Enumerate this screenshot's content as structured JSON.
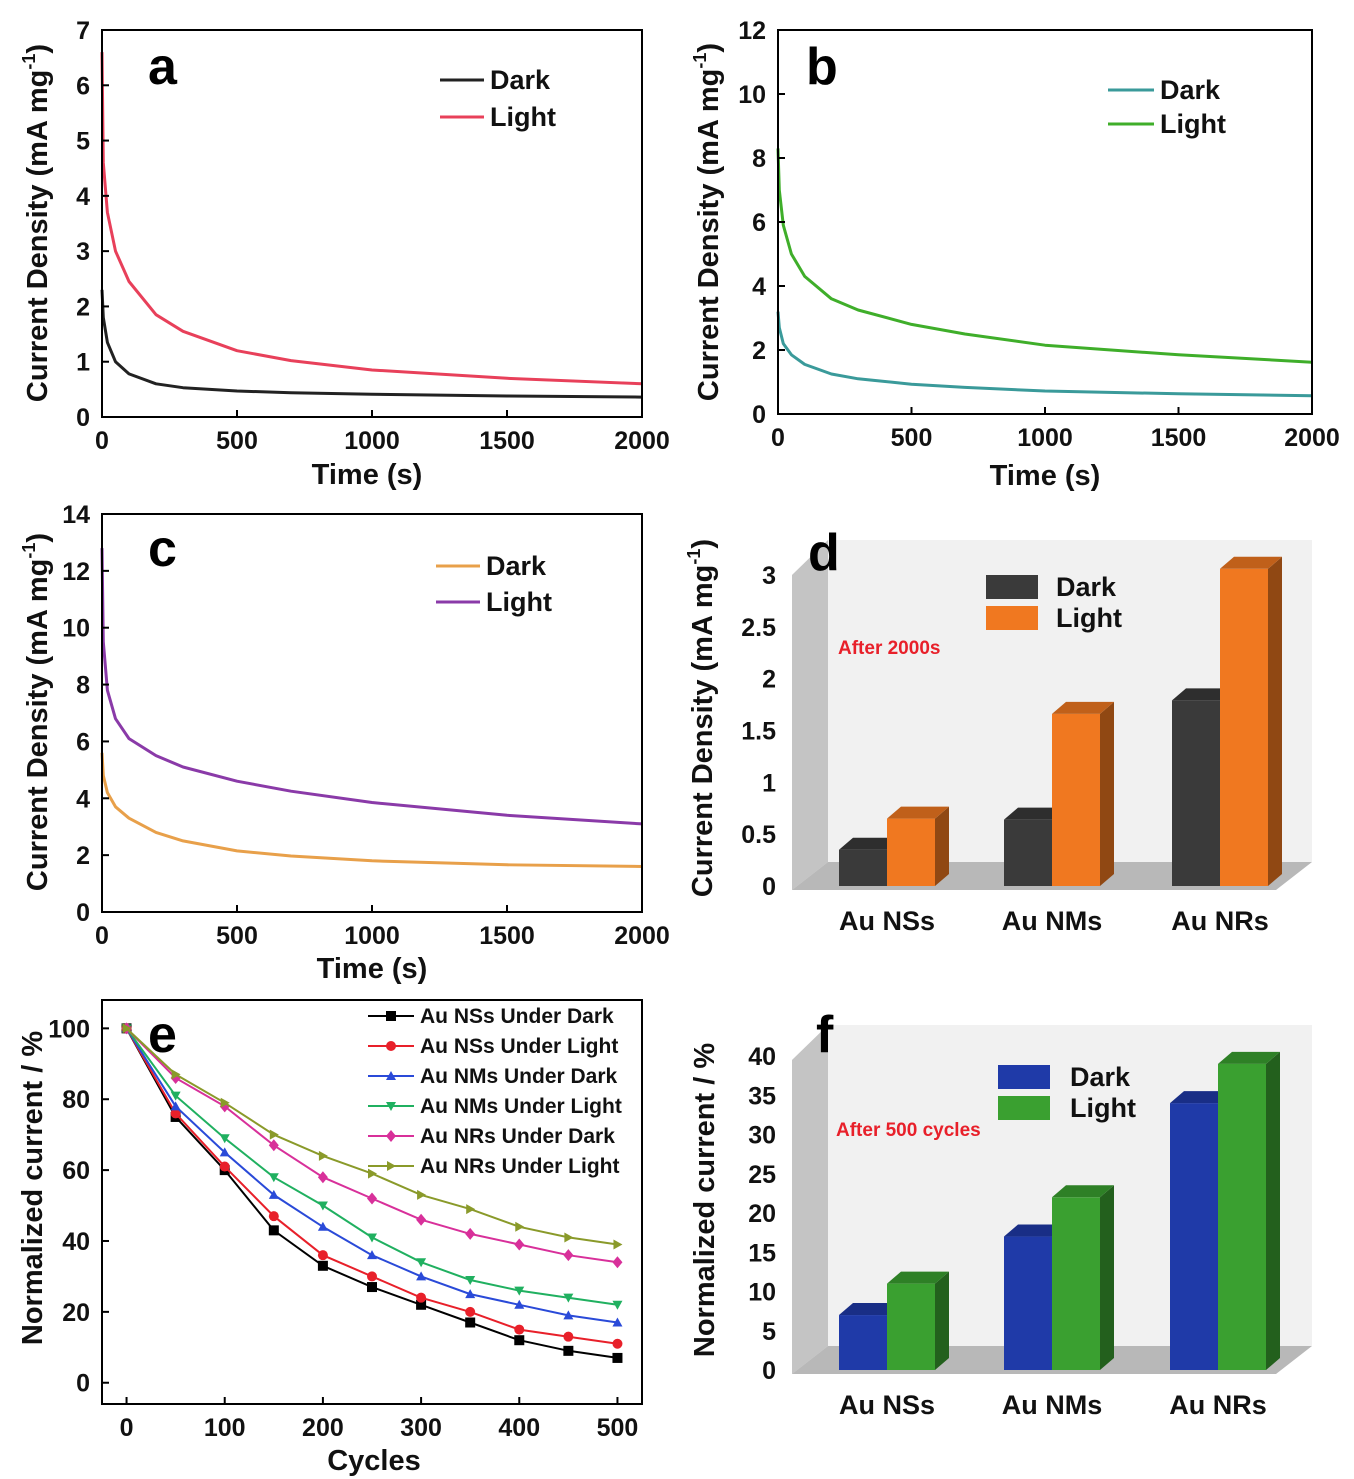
{
  "colors": {
    "dark_a": "#222222",
    "light_a": "#e8405a",
    "dark_b": "#3a9a9a",
    "light_b": "#3fae2a",
    "dark_c": "#e8a04a",
    "light_c": "#8a3aa8",
    "bar_dark_d": "#3a3a3a",
    "bar_light_d": "#f07820",
    "bar_dark_f": "#1f3aa8",
    "bar_light_f": "#3aa030",
    "note": "#e8202a"
  },
  "chart_data": [
    {
      "panel": "a",
      "type": "line",
      "xlabel": "Time (s)",
      "ylabel": "Current Density (mA mg⁻¹)",
      "xlim": [
        0,
        2000
      ],
      "ylim": [
        0,
        7
      ],
      "xticks": [
        "0",
        "500",
        "1000",
        "1500",
        "2000"
      ],
      "yticks": [
        "0",
        "1",
        "2",
        "3",
        "4",
        "5",
        "6",
        "7"
      ],
      "series": [
        {
          "name": "Dark",
          "x": [
            0,
            5,
            20,
            50,
            100,
            200,
            300,
            500,
            700,
            1000,
            1500,
            2000
          ],
          "y": [
            2.3,
            1.8,
            1.35,
            1.0,
            0.78,
            0.6,
            0.53,
            0.47,
            0.44,
            0.41,
            0.38,
            0.36
          ]
        },
        {
          "name": "Light",
          "x": [
            0,
            5,
            20,
            50,
            100,
            200,
            300,
            500,
            700,
            1000,
            1500,
            2000
          ],
          "y": [
            6.6,
            4.6,
            3.7,
            3.0,
            2.45,
            1.85,
            1.55,
            1.2,
            1.02,
            0.85,
            0.7,
            0.6
          ]
        }
      ]
    },
    {
      "panel": "b",
      "type": "line",
      "xlabel": "Time (s)",
      "ylabel": "Current Density (mA mg⁻¹)",
      "xlim": [
        0,
        2000
      ],
      "ylim": [
        0,
        12
      ],
      "xticks": [
        "0",
        "500",
        "1000",
        "1500",
        "2000"
      ],
      "yticks": [
        "0",
        "2",
        "4",
        "6",
        "8",
        "10",
        "12"
      ],
      "series": [
        {
          "name": "Dark",
          "x": [
            0,
            5,
            20,
            50,
            100,
            200,
            300,
            500,
            700,
            1000,
            1500,
            2000
          ],
          "y": [
            3.2,
            2.7,
            2.2,
            1.85,
            1.55,
            1.25,
            1.1,
            0.93,
            0.83,
            0.72,
            0.63,
            0.57
          ]
        },
        {
          "name": "Light",
          "x": [
            0,
            5,
            20,
            50,
            100,
            200,
            300,
            500,
            700,
            1000,
            1500,
            2000
          ],
          "y": [
            8.3,
            7.0,
            5.9,
            5.0,
            4.3,
            3.6,
            3.25,
            2.8,
            2.5,
            2.15,
            1.85,
            1.62
          ]
        }
      ]
    },
    {
      "panel": "c",
      "type": "line",
      "xlabel": "Time (s)",
      "ylabel": "Current Density (mA mg⁻¹)",
      "xlim": [
        0,
        2000
      ],
      "ylim": [
        0,
        14
      ],
      "xticks": [
        "0",
        "500",
        "1000",
        "1500",
        "2000"
      ],
      "yticks": [
        "0",
        "2",
        "4",
        "6",
        "8",
        "10",
        "12",
        "14"
      ],
      "series": [
        {
          "name": "Dark",
          "x": [
            0,
            5,
            20,
            50,
            100,
            200,
            300,
            500,
            700,
            1000,
            1500,
            2000
          ],
          "y": [
            5.6,
            4.8,
            4.2,
            3.7,
            3.3,
            2.8,
            2.5,
            2.15,
            1.97,
            1.8,
            1.66,
            1.6
          ]
        },
        {
          "name": "Light",
          "x": [
            0,
            5,
            20,
            50,
            100,
            200,
            300,
            500,
            700,
            1000,
            1500,
            2000
          ],
          "y": [
            12.8,
            9.5,
            7.8,
            6.8,
            6.1,
            5.5,
            5.1,
            4.6,
            4.25,
            3.85,
            3.4,
            3.1
          ]
        }
      ]
    },
    {
      "panel": "d",
      "type": "bar",
      "ylabel": "Current Density (mA mg⁻¹)",
      "categories": [
        "Au NSs",
        "Au NMs",
        "Au NRs"
      ],
      "ylim": [
        0,
        3
      ],
      "yticks": [
        "0",
        "0.5",
        "1",
        "1.5",
        "2",
        "2.5",
        "3"
      ],
      "annotation": "After 2000s",
      "series": [
        {
          "name": "Dark",
          "values": [
            0.35,
            0.64,
            1.79
          ]
        },
        {
          "name": "Light",
          "values": [
            0.65,
            1.66,
            3.06
          ]
        }
      ]
    },
    {
      "panel": "e",
      "type": "line",
      "xlabel": "Cycles",
      "ylabel": "Normalized current / %",
      "xlim": [
        -25,
        525
      ],
      "ylim": [
        -6,
        108
      ],
      "xticks": [
        "0",
        "100",
        "200",
        "300",
        "400",
        "500"
      ],
      "yticks": [
        "0",
        "20",
        "40",
        "60",
        "80",
        "100"
      ],
      "x": [
        0,
        50,
        100,
        150,
        200,
        250,
        300,
        350,
        400,
        450,
        500
      ],
      "series": [
        {
          "name": "Au NSs Under Dark",
          "color": "#000000",
          "marker": "square",
          "values": [
            100,
            75,
            60,
            43,
            33,
            27,
            22,
            17,
            12,
            9,
            7
          ]
        },
        {
          "name": "Au NSs Under Light",
          "color": "#e8202a",
          "marker": "circle",
          "values": [
            100,
            76,
            61,
            47,
            36,
            30,
            24,
            20,
            15,
            13,
            11
          ]
        },
        {
          "name": "Au NMs Under Dark",
          "color": "#2a4ad8",
          "marker": "triangle-up",
          "values": [
            100,
            78,
            65,
            53,
            44,
            36,
            30,
            25,
            22,
            19,
            17
          ]
        },
        {
          "name": "Au NMs Under Light",
          "color": "#20b060",
          "marker": "triangle-down",
          "values": [
            100,
            81,
            69,
            58,
            50,
            41,
            34,
            29,
            26,
            24,
            22
          ]
        },
        {
          "name": "Au NRs Under Dark",
          "color": "#d8309a",
          "marker": "diamond",
          "values": [
            100,
            86,
            78,
            67,
            58,
            52,
            46,
            42,
            39,
            36,
            34
          ]
        },
        {
          "name": "Au NRs Under Light",
          "color": "#8a9a2a",
          "marker": "triangle-right",
          "values": [
            100,
            87,
            79,
            70,
            64,
            59,
            53,
            49,
            44,
            41,
            39
          ]
        }
      ]
    },
    {
      "panel": "f",
      "type": "bar",
      "ylabel": "Normalized current / %",
      "categories": [
        "Au NSs",
        "Au NMs",
        "Au NRs"
      ],
      "ylim": [
        0,
        40
      ],
      "yticks": [
        "0",
        "5",
        "10",
        "15",
        "20",
        "25",
        "30",
        "35",
        "40"
      ],
      "annotation": "After 500 cycles",
      "series": [
        {
          "name": "Dark",
          "values": [
            7,
            17,
            34
          ]
        },
        {
          "name": "Light",
          "values": [
            11,
            22,
            39
          ]
        }
      ]
    }
  ]
}
